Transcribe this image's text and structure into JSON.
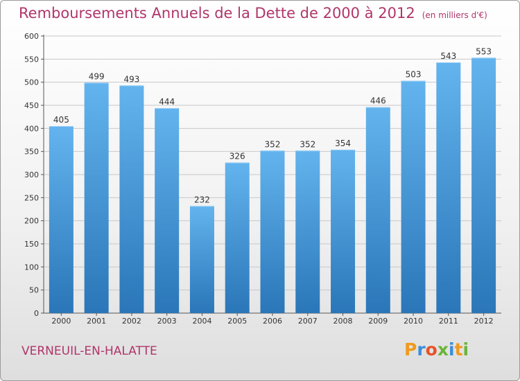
{
  "title": "Remboursements Annuels de la Dette de 2000 à 2012",
  "subtitle": "(en milliers d'€)",
  "city": "VERNEUIL-EN-HALATTE",
  "logo": {
    "letters": [
      "P",
      "r",
      "o",
      "x",
      "i",
      "t",
      "i"
    ],
    "colors": [
      "#f09a1e",
      "#3c8dd8",
      "#e8532a",
      "#6bb43a",
      "#3c8dd8",
      "#f09a1e",
      "#6bb43a"
    ]
  },
  "colors": {
    "bar_top": "#63b4ee",
    "bar_bottom": "#2a76b8",
    "title": "#b0356a"
  },
  "chart_data": {
    "type": "bar",
    "categories": [
      "2000",
      "2001",
      "2002",
      "2003",
      "2004",
      "2005",
      "2006",
      "2007",
      "2008",
      "2009",
      "2010",
      "2011",
      "2012"
    ],
    "values": [
      405,
      499,
      493,
      444,
      232,
      326,
      352,
      352,
      354,
      446,
      503,
      543,
      553
    ],
    "ylim": [
      0,
      600
    ],
    "yticks": [
      0,
      50,
      100,
      150,
      200,
      250,
      300,
      350,
      400,
      450,
      500,
      550,
      600
    ],
    "grid": true
  }
}
